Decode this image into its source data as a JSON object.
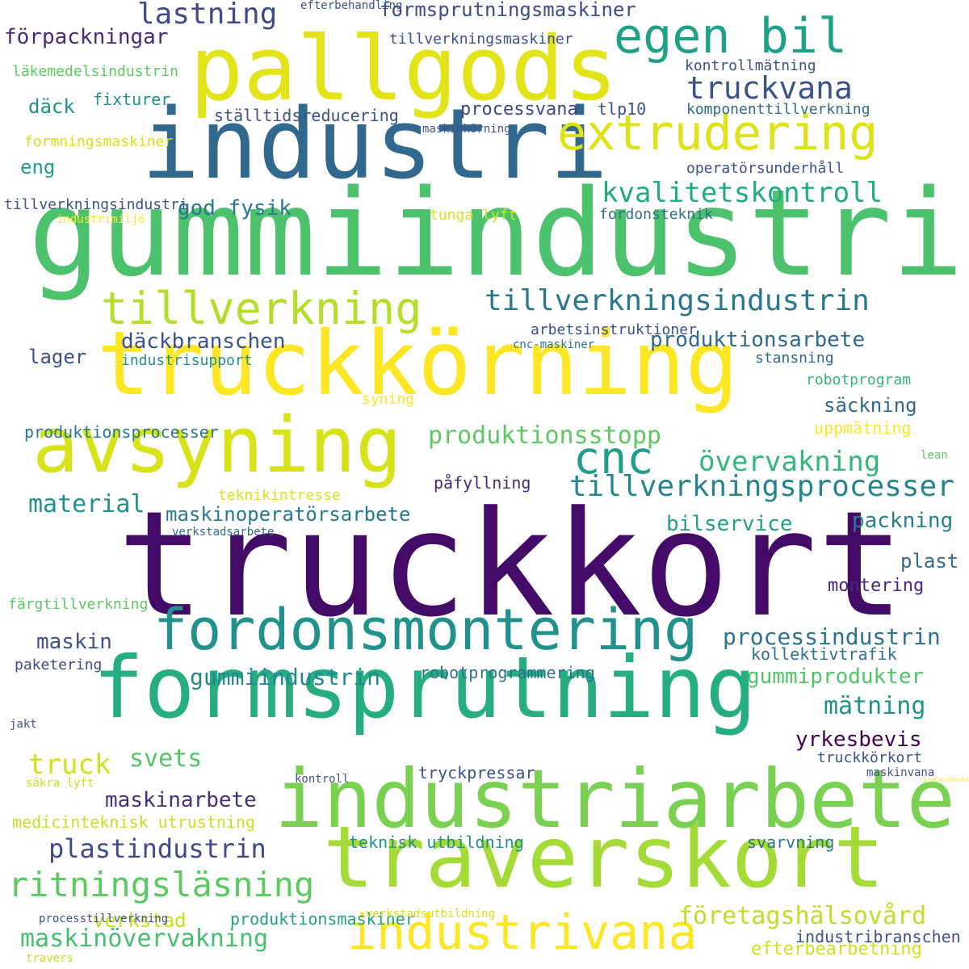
{
  "palette": {
    "dark_purple": "#440a68",
    "purple": "#46317e",
    "indigo": "#3b4f8a",
    "blue": "#31688e",
    "steel": "#2d708e",
    "teal_dark": "#25848e",
    "teal": "#21918c",
    "sea": "#1f9e89",
    "green_teal": "#26ad81",
    "green": "#35b779",
    "green_light": "#5ec962",
    "lime": "#a5db36",
    "yellow_green": "#c8e020",
    "yellow": "#fde725"
  },
  "words": [
    {
      "text": "truckkort",
      "weight": 100,
      "color": "#440a68"
    },
    {
      "text": "gummiindustri",
      "weight": 92,
      "color": "#4cc26c"
    },
    {
      "text": "industri",
      "weight": 80,
      "color": "#31688e"
    },
    {
      "text": "pallgods",
      "weight": 78,
      "color": "#e2e418"
    },
    {
      "text": "truckkörning",
      "weight": 76,
      "color": "#fde725"
    },
    {
      "text": "traverskort",
      "weight": 74,
      "color": "#a5db36"
    },
    {
      "text": "formsprutning",
      "weight": 72,
      "color": "#26ad81"
    },
    {
      "text": "industriarbete",
      "weight": 70,
      "color": "#7ad151"
    },
    {
      "text": "avsyning",
      "weight": 68,
      "color": "#d8e219"
    },
    {
      "text": "fordonsmontering",
      "weight": 60,
      "color": "#21918c"
    },
    {
      "text": "industrivana",
      "weight": 56,
      "color": "#fde725"
    },
    {
      "text": "egen bil",
      "weight": 54,
      "color": "#1fa187"
    },
    {
      "text": "extrudering",
      "weight": 52,
      "color": "#dde318"
    },
    {
      "text": "tillverkning",
      "weight": 50,
      "color": "#b5de2b"
    },
    {
      "text": "cnc",
      "weight": 48,
      "color": "#1f9e89"
    },
    {
      "text": "tillverkningsindustrin",
      "weight": 40,
      "color": "#2a788e"
    },
    {
      "text": "ritningsläsning",
      "weight": 38,
      "color": "#5ec962"
    },
    {
      "text": "truckvana",
      "weight": 36,
      "color": "#3b528b"
    },
    {
      "text": "tillverkningsprocesser",
      "weight": 36,
      "color": "#25848e"
    },
    {
      "text": "lastning",
      "weight": 34,
      "color": "#3e4a89"
    },
    {
      "text": "kvalitetskontroll",
      "weight": 34,
      "color": "#22a884"
    },
    {
      "text": "maskinövervakning",
      "weight": 34,
      "color": "#44bf70"
    },
    {
      "text": "truck",
      "weight": 34,
      "color": "#d0e11c"
    },
    {
      "text": "övervakning",
      "weight": 34,
      "color": "#35b779"
    },
    {
      "text": "företagshälsovård",
      "weight": 32,
      "color": "#bddf26"
    },
    {
      "text": "plastindustrin",
      "weight": 32,
      "color": "#3e4a89"
    },
    {
      "text": "produktionsstopp",
      "weight": 30,
      "color": "#5ec962"
    },
    {
      "text": "material",
      "weight": 30,
      "color": "#21918c"
    },
    {
      "text": "svets",
      "weight": 30,
      "color": "#54c568"
    },
    {
      "text": "gummiindustrin",
      "weight": 30,
      "color": "#23898e"
    },
    {
      "text": "mätning",
      "weight": 30,
      "color": "#20928c"
    },
    {
      "text": "processindustrin",
      "weight": 28,
      "color": "#2c728e"
    },
    {
      "text": "produktionsarbete",
      "weight": 28,
      "color": "#31688e"
    },
    {
      "text": "däckbranschen",
      "weight": 28,
      "color": "#3b528b"
    },
    {
      "text": "packning",
      "weight": 28,
      "color": "#277f8e"
    },
    {
      "text": "formsprutningsmaskiner",
      "weight": 26,
      "color": "#3e4a89"
    },
    {
      "text": "förpackningar",
      "weight": 26,
      "color": "#482878"
    },
    {
      "text": "god fysik",
      "weight": 26,
      "color": "#2a788e"
    },
    {
      "text": "maskinoperatörsarbete",
      "weight": 26,
      "color": "#2a788e"
    },
    {
      "text": "bilservice",
      "weight": 26,
      "color": "#1fa187"
    },
    {
      "text": "maskinarbete",
      "weight": 26,
      "color": "#472d7b"
    },
    {
      "text": "maskin",
      "weight": 26,
      "color": "#3b528b"
    },
    {
      "text": "säckning",
      "weight": 26,
      "color": "#31688e"
    },
    {
      "text": "yrkesbevis",
      "weight": 26,
      "color": "#440154"
    },
    {
      "text": "gummiprodukter",
      "weight": 26,
      "color": "#52c569"
    },
    {
      "text": "verkstad",
      "weight": 26,
      "color": "#c8e020"
    },
    {
      "text": "efterbearbetning",
      "weight": 24,
      "color": "#d0e11c"
    },
    {
      "text": "däck",
      "weight": 24,
      "color": "#21918c"
    },
    {
      "text": "eng",
      "weight": 24,
      "color": "#1f9e89"
    },
    {
      "text": "lager",
      "weight": 24,
      "color": "#3b528b"
    },
    {
      "text": "montering",
      "weight": 24,
      "color": "#482878"
    },
    {
      "text": "plast",
      "weight": 24,
      "color": "#31688e"
    },
    {
      "text": "processvana",
      "weight": 22,
      "color": "#414487"
    },
    {
      "text": "industribranschen",
      "weight": 20,
      "color": "#3b528b"
    },
    {
      "text": "kollektivtrafik",
      "weight": 20,
      "color": "#2c728e"
    },
    {
      "text": "fixturer",
      "weight": 20,
      "color": "#21918c"
    },
    {
      "text": "tlp10",
      "weight": 20,
      "color": "#3b528b"
    },
    {
      "text": "ställtidsreducering",
      "weight": 20,
      "color": "#3b528b"
    },
    {
      "text": "produktionsprocesser",
      "weight": 20,
      "color": "#2a788e"
    },
    {
      "text": "uppmätning",
      "weight": 20,
      "color": "#fde725"
    },
    {
      "text": "påfyllning",
      "weight": 20,
      "color": "#482878"
    },
    {
      "text": "robotprogrammering",
      "weight": 20,
      "color": "#2c728e"
    },
    {
      "text": "medicinteknisk utrustning",
      "weight": 20,
      "color": "#c8e020"
    },
    {
      "text": "teknisk utbildning",
      "weight": 20,
      "color": "#21918c"
    },
    {
      "text": "produktionsmaskiner",
      "weight": 20,
      "color": "#1fa187"
    },
    {
      "text": "tryckpressar",
      "weight": 20,
      "color": "#3b528b"
    },
    {
      "text": "svarvning",
      "weight": 20,
      "color": "#2a788e"
    },
    {
      "text": "stansning",
      "weight": 20,
      "color": "#31688e"
    },
    {
      "text": "tillverkningsindustri",
      "weight": 18,
      "color": "#3b528b"
    },
    {
      "text": "operatörsunderhåll",
      "weight": 18,
      "color": "#3b528b"
    },
    {
      "text": "tillverkningsmaskiner",
      "weight": 18,
      "color": "#3b528b"
    },
    {
      "text": "kontrollmätning",
      "weight": 18,
      "color": "#3b528b"
    },
    {
      "text": "komponenttillverkning",
      "weight": 18,
      "color": "#31688e"
    },
    {
      "text": "läkemedelsindustrin",
      "weight": 18,
      "color": "#5ec962"
    },
    {
      "text": "formningsmaskiner",
      "weight": 18,
      "color": "#d8e219"
    },
    {
      "text": "tunga lyft",
      "weight": 18,
      "color": "#d8e219"
    },
    {
      "text": "fordonsteknik",
      "weight": 18,
      "color": "#2c728e"
    },
    {
      "text": "industrisupport",
      "weight": 18,
      "color": "#21918c"
    },
    {
      "text": "arbetsinstruktioner",
      "weight": 18,
      "color": "#3b528b"
    },
    {
      "text": "robotprogram",
      "weight": 18,
      "color": "#35b779"
    },
    {
      "text": "teknikintresse",
      "weight": 18,
      "color": "#d8e219"
    },
    {
      "text": "färgtillverkning",
      "weight": 18,
      "color": "#5ec962"
    },
    {
      "text": "paketering",
      "weight": 18,
      "color": "#3e4a89"
    },
    {
      "text": "truckkörkort",
      "weight": 18,
      "color": "#3b528b"
    },
    {
      "text": "processmaskiner",
      "weight": 18,
      "color": "#fde725"
    },
    {
      "text": "jakt",
      "weight": 18,
      "color": "#3b528b"
    },
    {
      "text": "cnc-maskiner",
      "weight": 14,
      "color": "#2c728e"
    },
    {
      "text": "maskinkörning",
      "weight": 14,
      "color": "#3b528b"
    },
    {
      "text": "industrimiljö",
      "weight": 14,
      "color": "#fde725"
    },
    {
      "text": "verkstadsarbete",
      "weight": 14,
      "color": "#31688e"
    },
    {
      "text": "maskinvana",
      "weight": 14,
      "color": "#3b528b"
    },
    {
      "text": "kontroll",
      "weight": 14,
      "color": "#3b528b"
    },
    {
      "text": "säkra lyft",
      "weight": 14,
      "color": "#c8e020"
    },
    {
      "text": "verkstadsutbildning",
      "weight": 14,
      "color": "#d8e219"
    },
    {
      "text": "processtillverkning",
      "weight": 14,
      "color": "#3b528b"
    },
    {
      "text": "travers",
      "weight": 14,
      "color": "#c8e020"
    },
    {
      "text": "efterbehandling",
      "weight": 14,
      "color": "#3b528b"
    },
    {
      "text": "lean",
      "weight": 14,
      "color": "#5ec962"
    },
    {
      "text": "syning",
      "weight": 14,
      "color": "#fde725"
    },
    {
      "text": "ma",
      "weight": 14,
      "color": "#d8e219"
    }
  ]
}
